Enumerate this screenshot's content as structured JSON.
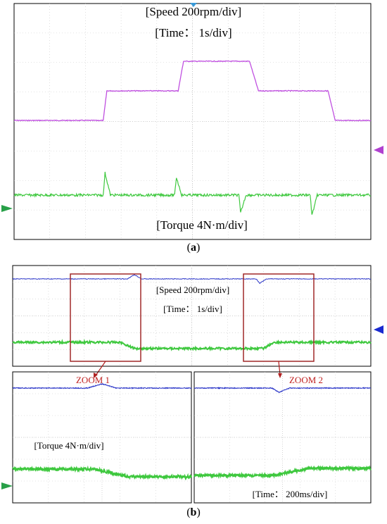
{
  "figure": {
    "panel_a_caption": "a",
    "panel_b_caption": "b"
  },
  "chart_data": [
    {
      "type": "line",
      "panel": "a",
      "annotations": {
        "speed_scale": "[Speed 200rpm/div]",
        "time_scale": "[Time： 1s/div]",
        "torque_scale": "[Torque 4N·m/div]"
      },
      "grid": true,
      "divisions": {
        "x": 10,
        "y": 8
      },
      "x_unit_per_div": "1s",
      "series": [
        {
          "channel": "speed",
          "color": "#c050e0",
          "points": [
            [
              0,
              0
            ],
            [
              2.5,
              0
            ],
            [
              2.6,
              200
            ],
            [
              4.6,
              200
            ],
            [
              4.75,
              400
            ],
            [
              6.6,
              400
            ],
            [
              6.85,
              200
            ],
            [
              8.8,
              200
            ],
            [
              9.0,
              0
            ],
            [
              10,
              0
            ]
          ]
        },
        {
          "channel": "torque",
          "color": "#3ec83e",
          "points": [
            [
              0,
              0
            ],
            [
              2.5,
              0
            ],
            [
              2.55,
              3.5
            ],
            [
              2.7,
              0
            ],
            [
              4.5,
              0
            ],
            [
              4.55,
              2.8
            ],
            [
              4.7,
              0
            ],
            [
              6.3,
              0
            ],
            [
              6.35,
              -2.8
            ],
            [
              6.5,
              0
            ],
            [
              8.3,
              0
            ],
            [
              8.35,
              -3.2
            ],
            [
              8.5,
              0
            ],
            [
              10,
              0
            ]
          ]
        }
      ]
    },
    {
      "type": "line",
      "panel": "b-main",
      "annotations": {
        "speed_scale": "[Speed 200rpm/div]",
        "time_scale": "[Time： 1s/div]"
      },
      "grid": true,
      "divisions": {
        "x": 10,
        "y": 8
      },
      "series": [
        {
          "channel": "speed",
          "color": "#2a35c8",
          "points": [
            [
              0,
              0
            ],
            [
              3.2,
              0
            ],
            [
              3.4,
              0.3
            ],
            [
              3.6,
              0
            ],
            [
              6.8,
              0
            ],
            [
              6.9,
              -0.3
            ],
            [
              7.1,
              0
            ],
            [
              10,
              0
            ]
          ]
        },
        {
          "channel": "torque",
          "color": "#3ec83e",
          "points": [
            [
              0,
              0
            ],
            [
              3.0,
              0
            ],
            [
              3.4,
              -0.35
            ],
            [
              7.0,
              -0.35
            ],
            [
              7.3,
              0
            ],
            [
              10,
              0
            ]
          ]
        }
      ],
      "zoom_boxes": [
        {
          "label": "ZOOM 1",
          "x_range": [
            1.6,
            3.6
          ]
        },
        {
          "label": "ZOOM 2",
          "x_range": [
            6.3,
            8.3
          ]
        }
      ]
    },
    {
      "type": "line",
      "panel": "b-zoom1",
      "annotations": {
        "torque_scale": "[Torque 4N·m/div]"
      },
      "grid": true,
      "series": [
        {
          "channel": "speed",
          "color": "#2a35c8",
          "points": [
            [
              0,
              0
            ],
            [
              4.2,
              0
            ],
            [
              5.0,
              0.3
            ],
            [
              5.8,
              0
            ],
            [
              10,
              0
            ]
          ]
        },
        {
          "channel": "torque",
          "color": "#3ec83e",
          "points": [
            [
              0,
              0
            ],
            [
              4.5,
              0
            ],
            [
              6.5,
              -0.4
            ],
            [
              10,
              -0.4
            ]
          ]
        }
      ]
    },
    {
      "type": "line",
      "panel": "b-zoom2",
      "annotations": {
        "time_scale": "[Time： 200ms/div]"
      },
      "grid": true,
      "series": [
        {
          "channel": "speed",
          "color": "#2a35c8",
          "points": [
            [
              0,
              0
            ],
            [
              4.4,
              0
            ],
            [
              4.8,
              -0.3
            ],
            [
              5.4,
              0
            ],
            [
              10,
              0
            ]
          ]
        },
        {
          "channel": "torque",
          "color": "#3ec83e",
          "points": [
            [
              0,
              -0.4
            ],
            [
              4.5,
              -0.4
            ],
            [
              6.5,
              0
            ],
            [
              10,
              0
            ]
          ]
        }
      ]
    }
  ]
}
